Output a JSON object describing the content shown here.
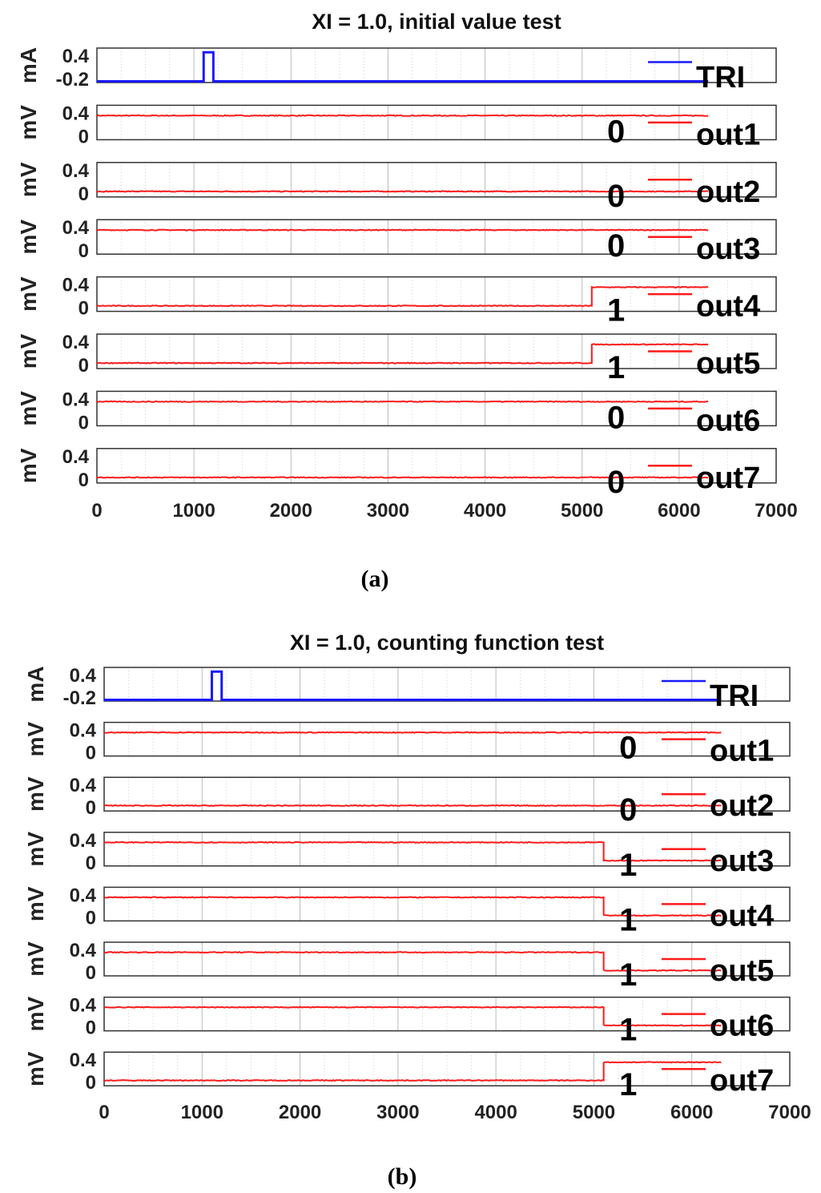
{
  "chart_data": [
    {
      "type": "line",
      "title": "XI = 1.0, initial value test",
      "caption": "(a)",
      "xlim": [
        0,
        7000
      ],
      "xticks": [
        "0",
        "1000",
        "2000",
        "3000",
        "4000",
        "5000",
        "6000",
        "7000"
      ],
      "colors": {
        "TRI": "#1a1aff",
        "out": "#ff1a1a"
      },
      "subplots": [
        {
          "legend": "TRI",
          "ylabel": "mA",
          "yticks": [
            "0.4",
            "-0.2"
          ],
          "ylim": [
            -0.2,
            0.45
          ],
          "kind": "pulse",
          "base": -0.2,
          "high": 0.4,
          "pulse": [
            1100,
            1200
          ],
          "xend": 6300
        },
        {
          "legend": "out1",
          "ylabel": "mV",
          "yticks": [
            "0.4",
            "0"
          ],
          "ylim": [
            -0.05,
            0.45
          ],
          "annotation": "0",
          "start": 0.3,
          "end": 0.3,
          "step_x": null,
          "xend": 6300
        },
        {
          "legend": "out2",
          "ylabel": "mV",
          "yticks": [
            "0.4",
            "0"
          ],
          "ylim": [
            -0.05,
            0.45
          ],
          "annotation": "0",
          "start": 0.03,
          "end": 0.03,
          "step_x": null,
          "xend": 6300
        },
        {
          "legend": "out3",
          "ylabel": "mV",
          "yticks": [
            "0.4",
            "0"
          ],
          "ylim": [
            -0.05,
            0.45
          ],
          "annotation": "0",
          "start": 0.3,
          "end": 0.3,
          "step_x": null,
          "xend": 6300
        },
        {
          "legend": "out4",
          "ylabel": "mV",
          "yticks": [
            "0.4",
            "0"
          ],
          "ylim": [
            -0.05,
            0.45
          ],
          "annotation": "1",
          "start": 0.03,
          "end": 0.3,
          "step_x": 5100,
          "xend": 6300
        },
        {
          "legend": "out5",
          "ylabel": "mV",
          "yticks": [
            "0.4",
            "0"
          ],
          "ylim": [
            -0.05,
            0.45
          ],
          "annotation": "1",
          "start": 0.03,
          "end": 0.3,
          "step_x": 5100,
          "xend": 6300
        },
        {
          "legend": "out6",
          "ylabel": "mV",
          "yticks": [
            "0.4",
            "0"
          ],
          "ylim": [
            -0.05,
            0.45
          ],
          "annotation": "0",
          "start": 0.3,
          "end": 0.3,
          "step_x": null,
          "xend": 6300
        },
        {
          "legend": "out7",
          "ylabel": "mV",
          "yticks": [
            "0.4",
            "0"
          ],
          "ylim": [
            -0.05,
            0.45
          ],
          "annotation": "0",
          "start": 0.03,
          "end": 0.03,
          "step_x": null,
          "xend": 6300
        }
      ]
    },
    {
      "type": "line",
      "title": "XI = 1.0, counting function test",
      "caption": "(b)",
      "xlim": [
        0,
        7000
      ],
      "xticks": [
        "0",
        "1000",
        "2000",
        "3000",
        "4000",
        "5000",
        "6000",
        "7000"
      ],
      "colors": {
        "TRI": "#1a1aff",
        "out": "#ff1a1a"
      },
      "subplots": [
        {
          "legend": "TRI",
          "ylabel": "mA",
          "yticks": [
            "0.4",
            "-0.2"
          ],
          "ylim": [
            -0.2,
            0.45
          ],
          "kind": "pulse",
          "base": -0.2,
          "high": 0.4,
          "pulse": [
            1100,
            1200
          ],
          "xend": 6300
        },
        {
          "legend": "out1",
          "ylabel": "mV",
          "yticks": [
            "0.4",
            "0"
          ],
          "ylim": [
            -0.05,
            0.45
          ],
          "annotation": "0",
          "start": 0.3,
          "end": 0.3,
          "step_x": null,
          "xend": 6300
        },
        {
          "legend": "out2",
          "ylabel": "mV",
          "yticks": [
            "0.4",
            "0"
          ],
          "ylim": [
            -0.05,
            0.45
          ],
          "annotation": "0",
          "start": 0.03,
          "end": 0.03,
          "step_x": null,
          "xend": 6300
        },
        {
          "legend": "out3",
          "ylabel": "mV",
          "yticks": [
            "0.4",
            "0"
          ],
          "ylim": [
            -0.05,
            0.45
          ],
          "annotation": "1",
          "start": 0.3,
          "end": 0.03,
          "step_x": 5100,
          "xend": 6300
        },
        {
          "legend": "out4",
          "ylabel": "mV",
          "yticks": [
            "0.4",
            "0"
          ],
          "ylim": [
            -0.05,
            0.45
          ],
          "annotation": "1",
          "start": 0.3,
          "end": 0.03,
          "step_x": 5100,
          "xend": 6300
        },
        {
          "legend": "out5",
          "ylabel": "mV",
          "yticks": [
            "0.4",
            "0"
          ],
          "ylim": [
            -0.05,
            0.45
          ],
          "annotation": "1",
          "start": 0.3,
          "end": 0.03,
          "step_x": 5100,
          "xend": 6300
        },
        {
          "legend": "out6",
          "ylabel": "mV",
          "yticks": [
            "0.4",
            "0"
          ],
          "ylim": [
            -0.05,
            0.45
          ],
          "annotation": "1",
          "start": 0.3,
          "end": 0.03,
          "step_x": 5100,
          "xend": 6300
        },
        {
          "legend": "out7",
          "ylabel": "mV",
          "yticks": [
            "0.4",
            "0"
          ],
          "ylim": [
            -0.05,
            0.45
          ],
          "annotation": "1",
          "start": 0.03,
          "end": 0.3,
          "step_x": 5100,
          "xend": 6300
        }
      ]
    }
  ]
}
